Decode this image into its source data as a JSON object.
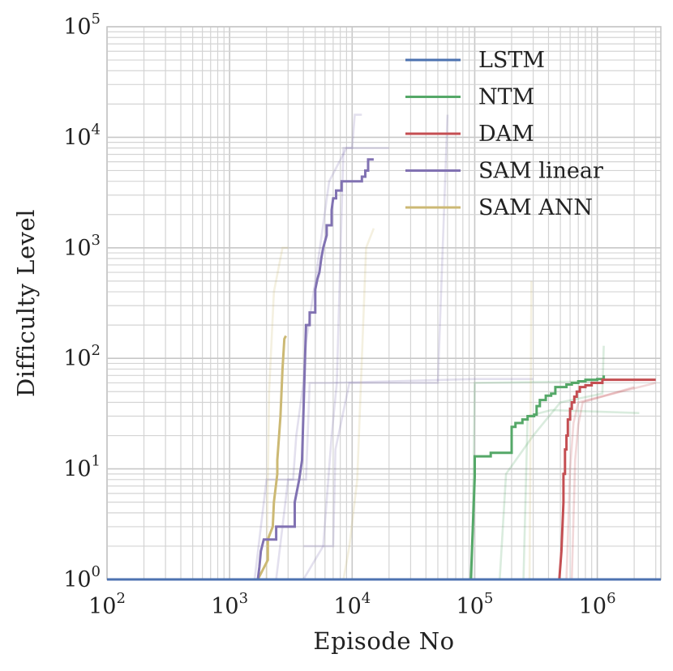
{
  "chart_data": {
    "type": "line",
    "xscale": "log",
    "yscale": "log",
    "xlabel": "Episode No",
    "ylabel": "Difficulty Level",
    "xlim": [
      100,
      3300000
    ],
    "ylim": [
      1,
      100000
    ],
    "x_ticks": [
      {
        "base": "10",
        "exp": "2",
        "value": 100
      },
      {
        "base": "10",
        "exp": "3",
        "value": 1000
      },
      {
        "base": "10",
        "exp": "4",
        "value": 10000
      },
      {
        "base": "10",
        "exp": "5",
        "value": 100000
      },
      {
        "base": "10",
        "exp": "6",
        "value": 1000000
      }
    ],
    "y_ticks": [
      {
        "base": "10",
        "exp": "0",
        "value": 1
      },
      {
        "base": "10",
        "exp": "1",
        "value": 10
      },
      {
        "base": "10",
        "exp": "2",
        "value": 100
      },
      {
        "base": "10",
        "exp": "3",
        "value": 1000
      },
      {
        "base": "10",
        "exp": "4",
        "value": 10000
      },
      {
        "base": "10",
        "exp": "5",
        "value": 100000
      }
    ],
    "grid": true,
    "legend_position": "upper-right",
    "series": [
      {
        "name": "LSTM",
        "color": "#4c72b0",
        "points": [
          [
            100,
            1
          ],
          [
            3300000,
            1
          ]
        ],
        "faint_runs": []
      },
      {
        "name": "NTM",
        "color": "#55a868",
        "points": [
          [
            100,
            1
          ],
          [
            93000,
            1
          ],
          [
            100000,
            8.5
          ],
          [
            100000,
            13
          ],
          [
            135000,
            13
          ],
          [
            135000,
            14
          ],
          [
            200000,
            14
          ],
          [
            200000,
            24
          ],
          [
            215000,
            24
          ],
          [
            215000,
            26
          ],
          [
            245000,
            26
          ],
          [
            245000,
            28
          ],
          [
            270000,
            28
          ],
          [
            270000,
            30
          ],
          [
            305000,
            30
          ],
          [
            305000,
            31
          ],
          [
            320000,
            31
          ],
          [
            320000,
            37
          ],
          [
            340000,
            37
          ],
          [
            340000,
            42
          ],
          [
            380000,
            42
          ],
          [
            380000,
            46
          ],
          [
            420000,
            46
          ],
          [
            420000,
            48
          ],
          [
            455000,
            48
          ],
          [
            455000,
            55
          ],
          [
            560000,
            55
          ],
          [
            560000,
            58
          ],
          [
            620000,
            58
          ],
          [
            620000,
            60
          ],
          [
            700000,
            60
          ],
          [
            700000,
            62
          ],
          [
            800000,
            62
          ],
          [
            800000,
            64
          ],
          [
            1000000,
            64
          ],
          [
            1000000,
            65
          ],
          [
            1130000,
            65
          ],
          [
            1130000,
            70
          ]
        ],
        "faint_runs": [
          [
            [
              100,
              1
            ],
            [
              95000,
              1
            ],
            [
              100000,
              60
            ],
            [
              1000000,
              62
            ]
          ],
          [
            [
              160000,
              1
            ],
            [
              180000,
              9
            ],
            [
              300000,
              20
            ],
            [
              500000,
              40
            ],
            [
              1100000,
              48
            ],
            [
              1130000,
              130
            ]
          ],
          [
            [
              250000,
              1
            ],
            [
              270000,
              30
            ],
            [
              420000,
              34
            ],
            [
              2200000,
              32
            ]
          ]
        ]
      },
      {
        "name": "DAM",
        "color": "#c44e52",
        "points": [
          [
            100,
            1
          ],
          [
            480000,
            1
          ],
          [
            490000,
            1
          ],
          [
            510000,
            1.8
          ],
          [
            530000,
            5
          ],
          [
            530000,
            9
          ],
          [
            545000,
            9
          ],
          [
            545000,
            15
          ],
          [
            560000,
            15
          ],
          [
            560000,
            20
          ],
          [
            575000,
            20
          ],
          [
            575000,
            28
          ],
          [
            600000,
            28
          ],
          [
            600000,
            35
          ],
          [
            620000,
            35
          ],
          [
            620000,
            40
          ],
          [
            650000,
            40
          ],
          [
            650000,
            45
          ],
          [
            680000,
            45
          ],
          [
            680000,
            50
          ],
          [
            720000,
            50
          ],
          [
            720000,
            55
          ],
          [
            800000,
            55
          ],
          [
            800000,
            57
          ],
          [
            900000,
            57
          ],
          [
            900000,
            60
          ],
          [
            1100000,
            60
          ],
          [
            1100000,
            64
          ],
          [
            3000000,
            64
          ]
        ],
        "faint_runs": [
          [
            [
              560000,
              1
            ],
            [
              600000,
              10
            ],
            [
              640000,
              26
            ],
            [
              700000,
              40
            ],
            [
              3000000,
              60
            ]
          ],
          [
            [
              620000,
              1
            ],
            [
              660000,
              12
            ],
            [
              700000,
              25
            ],
            [
              760000,
              40
            ],
            [
              2000000,
              55
            ]
          ]
        ]
      },
      {
        "name": "SAM linear",
        "color": "#8172b2",
        "points": [
          [
            100,
            1
          ],
          [
            1700000,
            1
          ],
          [
            1700,
            1
          ],
          [
            1750,
            1.3
          ],
          [
            1800,
            1.8
          ],
          [
            1900,
            2.3
          ],
          [
            2400,
            2.3
          ],
          [
            2400,
            3
          ],
          [
            3400,
            3
          ],
          [
            3400,
            5
          ],
          [
            3700,
            8
          ],
          [
            3900,
            12
          ],
          [
            4200,
            200
          ],
          [
            4500,
            200
          ],
          [
            4500,
            260
          ],
          [
            5000,
            260
          ],
          [
            5000,
            420
          ],
          [
            5200,
            520
          ],
          [
            5400,
            600
          ],
          [
            5600,
            800
          ],
          [
            5800,
            1000
          ],
          [
            6200,
            1300
          ],
          [
            6200,
            1600
          ],
          [
            6800,
            1600
          ],
          [
            6800,
            2200
          ],
          [
            7000,
            2800
          ],
          [
            7400,
            2800
          ],
          [
            7400,
            3300
          ],
          [
            8200,
            3300
          ],
          [
            8200,
            4000
          ],
          [
            12000,
            4000
          ],
          [
            12000,
            4400
          ],
          [
            12800,
            4400
          ],
          [
            12800,
            5000
          ],
          [
            13500,
            5000
          ],
          [
            13500,
            6300
          ],
          [
            15000,
            6300
          ]
        ],
        "faint_runs": [
          [
            [
              1600,
              1
            ],
            [
              2000,
              8
            ],
            [
              3300,
              8
            ],
            [
              3500,
              20
            ],
            [
              4000,
              60
            ],
            [
              4200,
              140
            ],
            [
              5000,
              500
            ],
            [
              6500,
              4000
            ],
            [
              9000,
              8000
            ],
            [
              20000,
              8000
            ]
          ],
          [
            [
              2400,
              1
            ],
            [
              3000,
              8
            ],
            [
              4200,
              8
            ],
            [
              4500,
              60
            ],
            [
              6500,
              60
            ],
            [
              100000,
              65
            ],
            [
              300000,
              65
            ]
          ],
          [
            [
              4000,
              1
            ],
            [
              5800,
              2
            ],
            [
              6800,
              20
            ],
            [
              7500,
              60
            ],
            [
              8000,
              800
            ],
            [
              8500,
              8000
            ],
            [
              10000,
              8000
            ],
            [
              10500,
              16000
            ],
            [
              12000,
              16000
            ]
          ],
          [
            [
              4000,
              2
            ],
            [
              6800,
              2
            ],
            [
              7000,
              2
            ],
            [
              7300,
              15
            ],
            [
              9500,
              60
            ],
            [
              50000,
              60
            ],
            [
              60000,
              16000
            ]
          ]
        ]
      },
      {
        "name": "SAM ANN",
        "color": "#ccb974",
        "points": [
          [
            1700,
            1
          ],
          [
            2050,
            1.5
          ],
          [
            2050,
            2.3
          ],
          [
            2250,
            3
          ],
          [
            2300,
            5
          ],
          [
            2450,
            9
          ],
          [
            2450,
            12
          ],
          [
            2600,
            30
          ],
          [
            2700,
            80
          ],
          [
            2800,
            150
          ],
          [
            2880,
            160
          ]
        ],
        "faint_runs": [
          [
            [
              2000,
              1
            ],
            [
              2100,
              50
            ],
            [
              2300,
              400
            ],
            [
              2700,
              1000
            ],
            [
              3000,
              1000
            ]
          ],
          [
            [
              8500,
              1
            ],
            [
              9500,
              2
            ],
            [
              11000,
              8
            ],
            [
              13000,
              1000
            ],
            [
              15000,
              1500
            ]
          ],
          [
            [
              280000,
              1
            ],
            [
              290000,
              500
            ]
          ]
        ]
      }
    ]
  }
}
